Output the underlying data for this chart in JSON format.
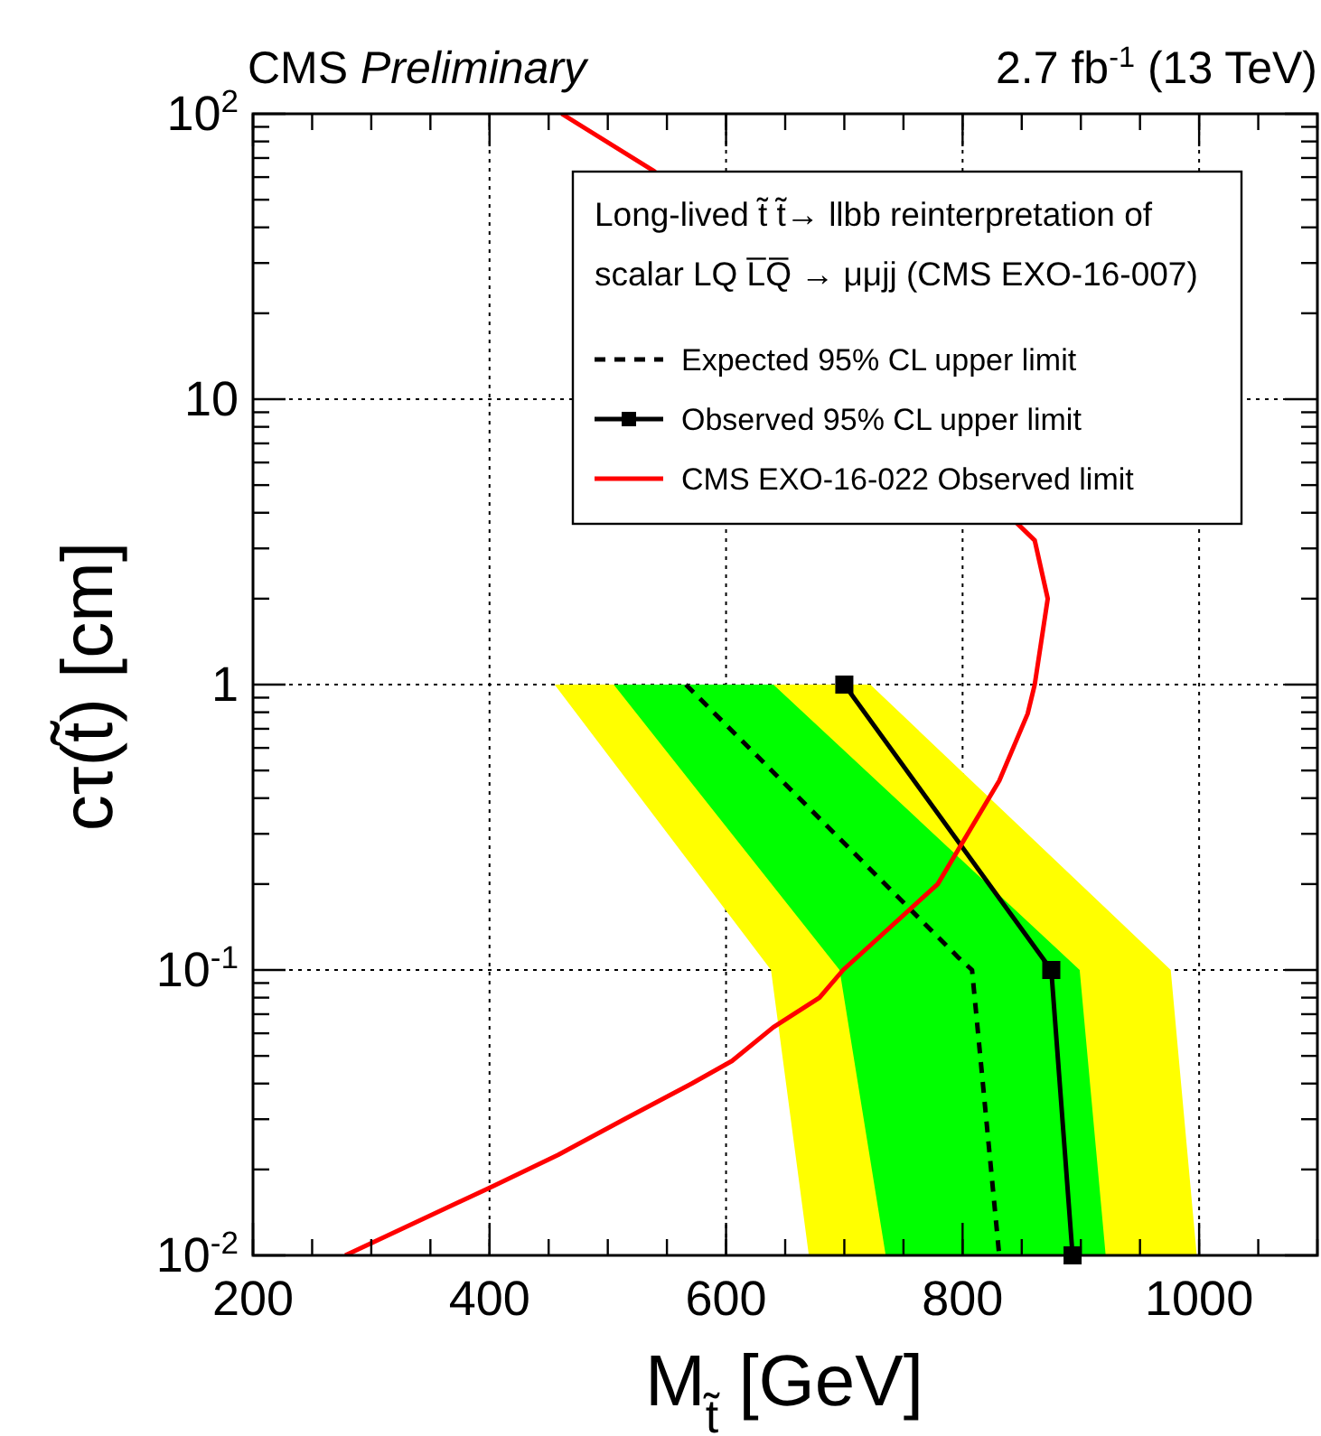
{
  "chart_data": {
    "type": "line",
    "title": "CMS Preliminary",
    "subtitle": "2.7 fb$^{-1}$ (13 TeV)",
    "xlabel": "M$_{t̃}$ [GeV]",
    "ylabel": "cτ(t̃) [cm]",
    "legend_title": "Long-lived t̃ t̃→ llbb reinterpretation of scalar LQ L̅Q̅ → μμjj (CMS EXO-16-007)",
    "log": "y",
    "grid": true,
    "legend": "top right",
    "xlim": [
      200,
      1100
    ],
    "ylim": [
      0.01,
      100
    ],
    "xticks": [
      200,
      400,
      600,
      800,
      1000
    ],
    "yticks": [
      {
        "value": 0.01,
        "label": "10$^{-2}$"
      },
      {
        "value": 0.1,
        "label": "10$^{-1}$"
      },
      1,
      10,
      {
        "value": 100,
        "label": "10$^{2}$"
      }
    ],
    "series": [
      {
        "type": "area",
        "color": "#ffff00",
        "x": [
          455,
          638,
          670,
          998,
          976,
          722,
          455
        ],
        "values": [
          1,
          0.1,
          0.01,
          0.01,
          0.1,
          1,
          1
        ]
      },
      {
        "type": "area",
        "color": "#00ff00",
        "x": [
          505,
          696,
          735,
          921,
          899,
          640,
          505
        ],
        "values": [
          1,
          0.1,
          0.01,
          0.01,
          0.1,
          1,
          1
        ]
      },
      {
        "name": "Expected 95% CL upper limit",
        "color": "#000000",
        "line_style": "dashed",
        "marker": "none",
        "x": [
          566,
          797,
          808,
          831
        ],
        "values": [
          1,
          0.11,
          0.1,
          0.01
        ]
      },
      {
        "name": "Observed 95% CL upper limit",
        "color": "#000000",
        "line_style": "solid",
        "marker": "square",
        "x": [
          700,
          875,
          893
        ],
        "values": [
          1,
          0.1,
          0.01
        ]
      },
      {
        "name": "CMS EXO-16-022 Observed limit",
        "color": "#ff0000",
        "line_style": "solid",
        "marker": "none",
        "x": [
          461,
          539,
          861,
          872,
          861,
          855,
          831,
          800,
          779,
          699,
          679,
          640,
          605,
          571,
          514,
          458,
          402,
          278
        ],
        "values": [
          100,
          63,
          3.2,
          2,
          1,
          0.79,
          0.46,
          0.28,
          0.2,
          0.1,
          0.08,
          0.063,
          0.048,
          0.04,
          0.03,
          0.0225,
          0.0174,
          0.01
        ]
      }
    ]
  }
}
